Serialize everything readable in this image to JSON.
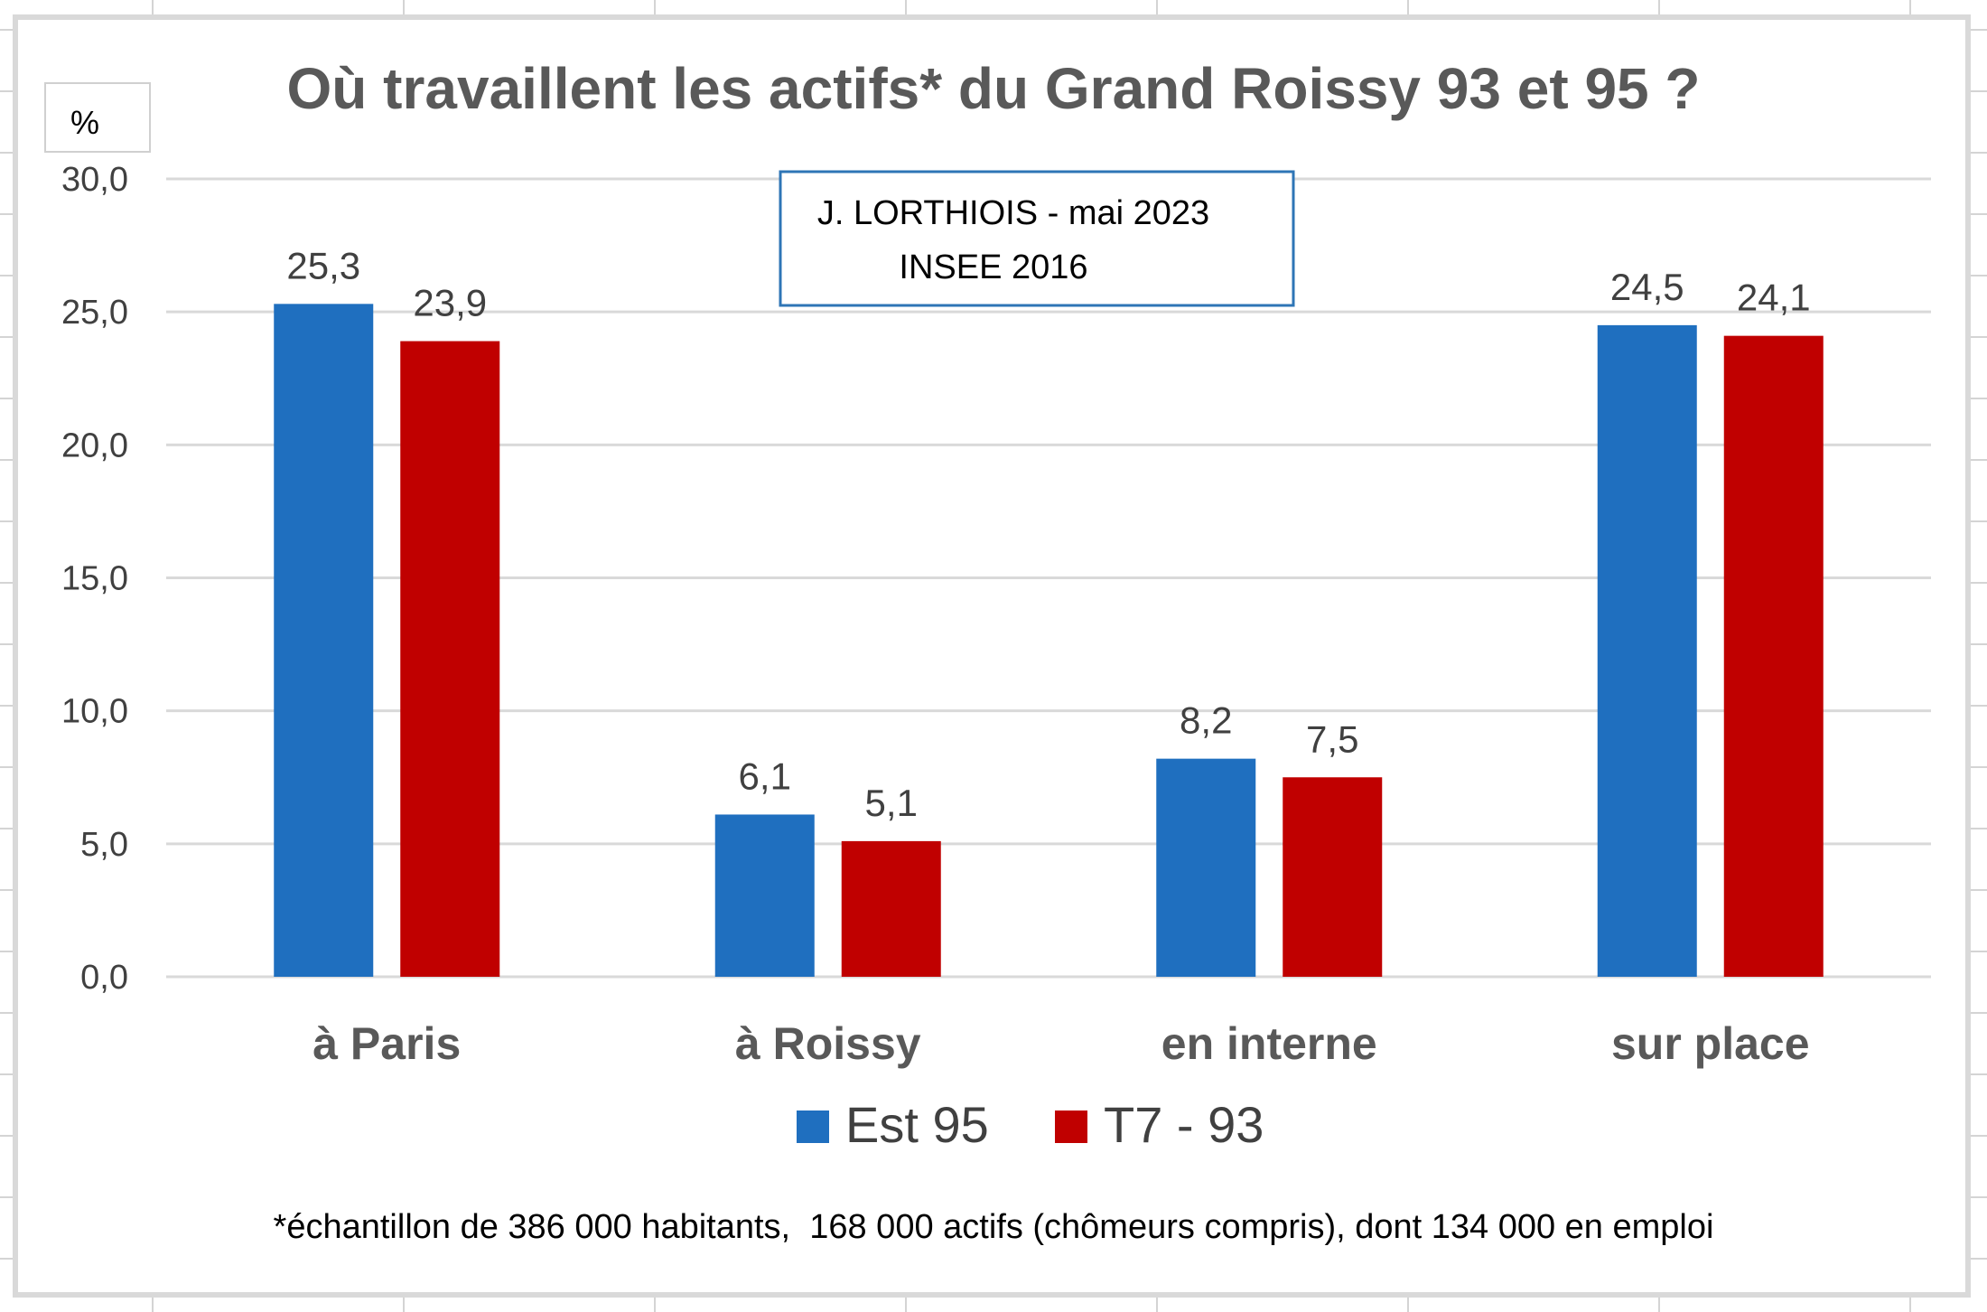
{
  "chart_data": {
    "type": "bar",
    "title": "Où travaillent les actifs* du Grand Roissy 93 et 95 ?",
    "unit_label": "%",
    "annotation": [
      "J. LORTHIOIS - mai 2023",
      "INSEE 2016"
    ],
    "footnote": "*échantillon de 386 000 habitants,  168 000 actifs (chômeurs compris), dont 134 000 en emploi",
    "categories": [
      "à Paris",
      "à Roissy",
      "en interne",
      "sur place"
    ],
    "series": [
      {
        "name": "Est 95",
        "color": "#1f6fbf",
        "values": [
          25.3,
          6.1,
          8.2,
          24.5
        ],
        "labels": [
          "25,3",
          "6,1",
          "8,2",
          "24,5"
        ]
      },
      {
        "name": "T7 - 93",
        "color": "#c00000",
        "values": [
          23.9,
          5.1,
          7.5,
          24.1
        ],
        "labels": [
          "23,9",
          "5,1",
          "7,5",
          "24,1"
        ]
      }
    ],
    "ylim": [
      0,
      30
    ],
    "yticks": [
      0,
      5,
      10,
      15,
      20,
      25,
      30
    ],
    "ytick_labels": [
      "0,0",
      "5,0",
      "10,0",
      "15,0",
      "20,0",
      "25,0",
      "30,0"
    ],
    "grid": true,
    "legend": "bottom"
  }
}
